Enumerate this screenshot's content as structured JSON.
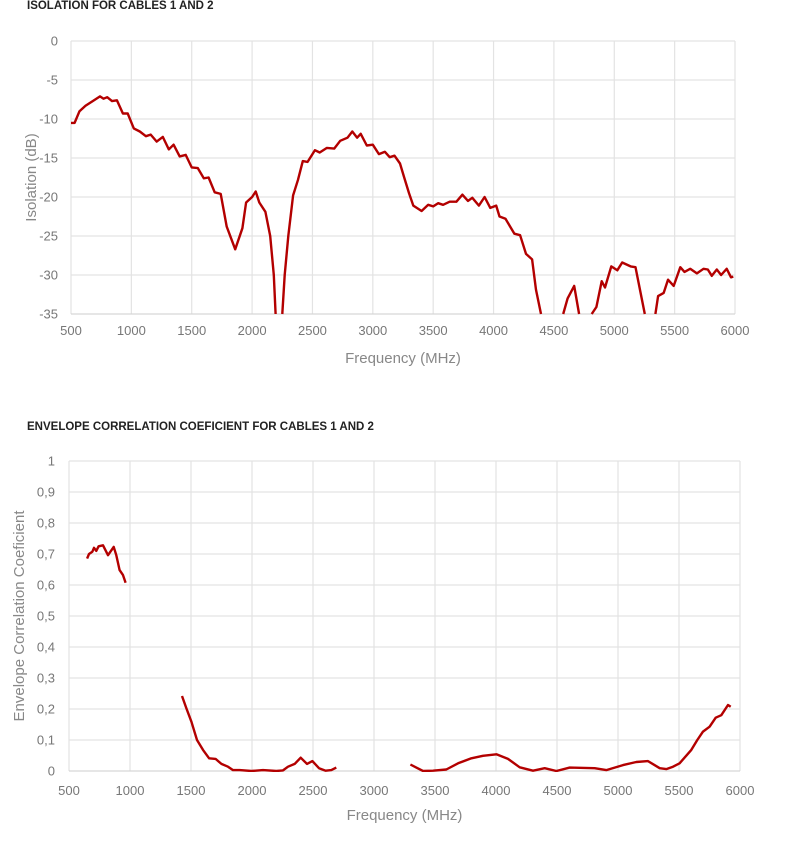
{
  "chart_data": [
    {
      "type": "line",
      "title": "ISOLATION FOR CABLES 1 AND 2",
      "xlabel": "Frequency (MHz)",
      "ylabel": "Isolation (dB)",
      "xlim": [
        500,
        6000
      ],
      "ylim": [
        -35,
        0
      ],
      "xticks": [
        "500",
        "1000",
        "1500",
        "2000",
        "2500",
        "3000",
        "3500",
        "4000",
        "4500",
        "5000",
        "5500",
        "6000"
      ],
      "yticks": [
        "0",
        "-5",
        "-10",
        "-15",
        "-20",
        "-25",
        "-30",
        "-35"
      ],
      "grid": true,
      "legend": "none",
      "color": "#b30000",
      "series": [
        {
          "x": [
            500,
            530,
            570,
            620,
            680,
            740,
            770,
            800,
            840,
            880,
            930,
            970,
            1020,
            1070,
            1120,
            1160,
            1210,
            1260,
            1310,
            1350,
            1400,
            1450,
            1500,
            1550,
            1600,
            1640,
            1690,
            1740,
            1790,
            1860,
            1920,
            1950,
            2000,
            2030,
            2060,
            2110,
            2150,
            2180,
            2195
          ],
          "y": [
            -10.5,
            -10.5,
            -9,
            -8.3,
            -7.7,
            -7.1,
            -7.4,
            -7.2,
            -7.7,
            -7.6,
            -9.3,
            -9.3,
            -11.2,
            -11.6,
            -12.2,
            -12.0,
            -12.9,
            -12.3,
            -13.9,
            -13.3,
            -14.8,
            -14.6,
            -16.2,
            -16.3,
            -17.6,
            -17.5,
            -19.4,
            -19.6,
            -23.8,
            -26.7,
            -24.0,
            -20.7,
            -20.0,
            -19.3,
            -20.7,
            -21.9,
            -25,
            -30,
            -35
          ]
        },
        {
          "x": [
            2250,
            2270,
            2300,
            2340,
            2380,
            2420,
            2460,
            2520,
            2560,
            2620,
            2680,
            2730,
            2790,
            2830,
            2870,
            2900,
            2950,
            3000,
            3050,
            3100,
            3140,
            3180,
            3225,
            3260,
            3300,
            3335,
            3404,
            3459,
            3500,
            3541,
            3582,
            3637,
            3692,
            3742,
            3788,
            3824,
            3879,
            3926,
            3973,
            4022,
            4049,
            4099,
            4173,
            4220,
            4269,
            4319,
            4352,
            4393
          ],
          "y": [
            -35,
            -30,
            -25,
            -19.8,
            -17.8,
            -15.4,
            -15.5,
            -14.0,
            -14.3,
            -13.7,
            -13.8,
            -12.8,
            -12.4,
            -11.6,
            -12.4,
            -11.9,
            -13.4,
            -13.3,
            -14.5,
            -14.2,
            -14.9,
            -14.7,
            -15.7,
            -17.5,
            -19.5,
            -21.1,
            -21.8,
            -21.0,
            -21.2,
            -20.8,
            -21.0,
            -20.6,
            -20.6,
            -19.7,
            -20.5,
            -20.1,
            -21.1,
            -20.0,
            -21.4,
            -21.1,
            -22.5,
            -22.8,
            -24.7,
            -24.9,
            -27.3,
            -28.0,
            -31.9,
            -35
          ]
        },
        {
          "x": [
            4577,
            4613,
            4668,
            4709
          ],
          "y": [
            -35,
            -33,
            -31.4,
            -35
          ]
        },
        {
          "x": [
            4813,
            4852,
            4896,
            4923,
            4975,
            5025,
            5066,
            5135,
            5176,
            5253
          ],
          "y": [
            -35,
            -34.1,
            -30.8,
            -31.6,
            -28.9,
            -29.4,
            -28.4,
            -28.9,
            -29.0,
            -35
          ]
        },
        {
          "x": [
            5341,
            5363,
            5409,
            5445,
            5492,
            5547,
            5582,
            5629,
            5684,
            5739,
            5775,
            5808,
            5849,
            5885,
            5931,
            5967,
            5986
          ],
          "y": [
            -35,
            -32.7,
            -32.3,
            -30.6,
            -31.4,
            -29.0,
            -29.6,
            -29.2,
            -29.8,
            -29.2,
            -29.3,
            -30.1,
            -29.3,
            -30.0,
            -29.2,
            -30.3,
            -30.2
          ]
        }
      ]
    },
    {
      "type": "line",
      "title": "ENVELOPE CORRELATION COEFICIENT FOR CABLES 1 AND 2",
      "xlabel": "Frequency (MHz)",
      "ylabel": "Envelope Correlation Coeficient",
      "xlim": [
        500,
        6000
      ],
      "ylim": [
        0,
        1
      ],
      "xticks": [
        "500",
        "1000",
        "1500",
        "2000",
        "2500",
        "3000",
        "3500",
        "4000",
        "4500",
        "5000",
        "5500",
        "6000"
      ],
      "yticks": [
        "1",
        "0,9",
        "0,8",
        "0,7",
        "0,6",
        "0,5",
        "0,4",
        "0,3",
        "0,2",
        "0,1",
        "0"
      ],
      "grid": true,
      "legend": "none",
      "color": "#b30000",
      "series": [
        {
          "x": [
            648,
            664,
            691,
            705,
            724,
            743,
            779,
            820,
            866,
            888,
            915,
            943,
            964
          ],
          "y": [
            0.685,
            0.7,
            0.707,
            0.72,
            0.71,
            0.725,
            0.728,
            0.696,
            0.723,
            0.696,
            0.648,
            0.632,
            0.607
          ]
        },
        {
          "x": [
            1426,
            1462,
            1503,
            1549,
            1598,
            1648,
            1702,
            1749,
            1803,
            1844,
            1899,
            1995,
            2090,
            2199,
            2254,
            2295,
            2350,
            2399,
            2451,
            2495,
            2549,
            2604,
            2650,
            2691
          ],
          "y": [
            0.242,
            0.202,
            0.159,
            0.1,
            0.068,
            0.041,
            0.039,
            0.023,
            0.014,
            0.003,
            0.003,
            0,
            0.003,
            0,
            0.002,
            0.014,
            0.023,
            0.043,
            0.023,
            0.032,
            0.009,
            0.001,
            0.003,
            0.011
          ]
        },
        {
          "x": [
            3298,
            3347,
            3402,
            3484,
            3593,
            3689,
            3798,
            3893,
            4003,
            4098,
            4194,
            4303,
            4399,
            4495,
            4604,
            4809,
            4904,
            5041,
            5150,
            5246,
            5342,
            5396,
            5451,
            5505,
            5601,
            5650,
            5697,
            5751,
            5801,
            5847,
            5902,
            5924
          ],
          "y": [
            0.021,
            0.011,
            0,
            0.001,
            0.005,
            0.025,
            0.041,
            0.049,
            0.054,
            0.039,
            0.012,
            0.001,
            0.009,
            0,
            0.011,
            0.009,
            0.003,
            0.019,
            0.029,
            0.032,
            0.009,
            0.006,
            0.014,
            0.025,
            0.068,
            0.1,
            0.127,
            0.143,
            0.172,
            0.18,
            0.213,
            0.207
          ]
        }
      ]
    }
  ]
}
